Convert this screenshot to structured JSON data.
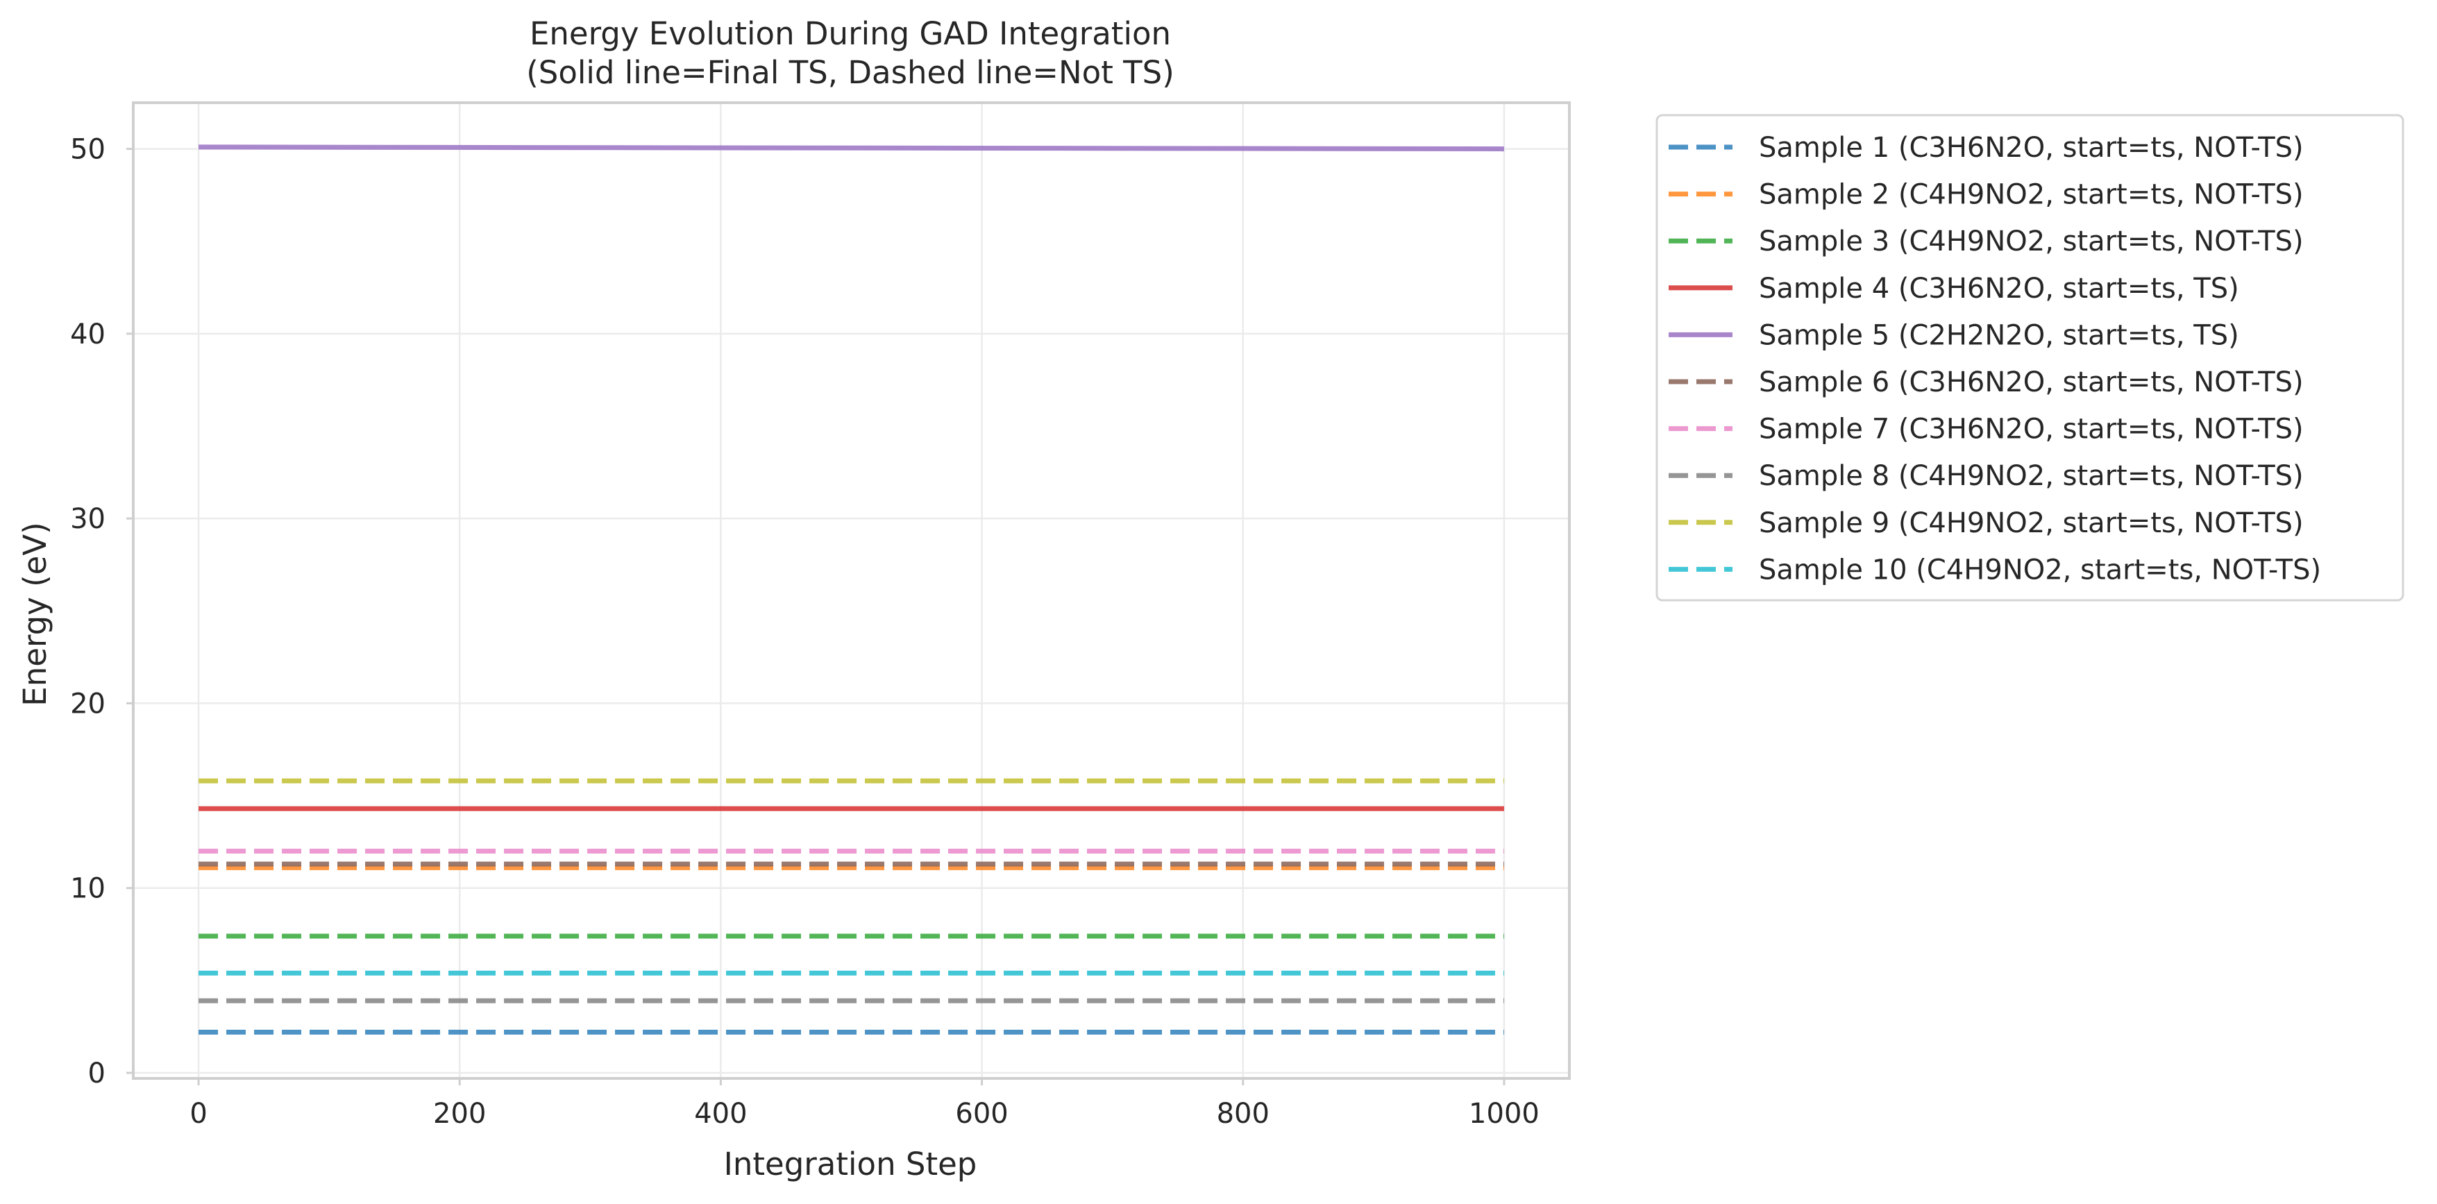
{
  "chart_data": {
    "type": "line",
    "title": "Energy Evolution During GAD Integration",
    "subtitle": "(Solid line=Final TS, Dashed line=Not TS)",
    "xlabel": "Integration Step",
    "ylabel": "Energy (eV)",
    "xlim": [
      -50,
      1050
    ],
    "ylim": [
      -0.3,
      52.5
    ],
    "xticks": [
      0,
      200,
      400,
      600,
      800,
      1000
    ],
    "yticks": [
      0,
      10,
      20,
      30,
      40,
      50
    ],
    "grid": true,
    "legend_position": "outside-right-top",
    "x": [
      0,
      1000
    ],
    "series": [
      {
        "name": "Sample 1 (C3H6N2O, start=ts, NOT-TS)",
        "values": [
          2.2,
          2.2
        ],
        "style": "dashed",
        "color": "#3a87bf"
      },
      {
        "name": "Sample 2 (C4H9NO2, start=ts, NOT-TS)",
        "values": [
          11.1,
          11.1
        ],
        "style": "dashed",
        "color": "#ff8c2b"
      },
      {
        "name": "Sample 3 (C4H9NO2, start=ts, NOT-TS)",
        "values": [
          7.4,
          7.4
        ],
        "style": "dashed",
        "color": "#3fae45"
      },
      {
        "name": "Sample 4 (C3H6N2O, start=ts, TS)",
        "values": [
          14.3,
          14.3
        ],
        "style": "solid",
        "color": "#d93a3a"
      },
      {
        "name": "Sample 5 (C2H2N2O, start=ts, TS)",
        "values": [
          50.1,
          50.0
        ],
        "style": "solid",
        "color": "#a07ac6"
      },
      {
        "name": "Sample 6 (C3H6N2O, start=ts, NOT-TS)",
        "values": [
          11.3,
          11.3
        ],
        "style": "dashed",
        "color": "#8f6a5e"
      },
      {
        "name": "Sample 7 (C3H6N2O, start=ts, NOT-TS)",
        "values": [
          12.0,
          12.0
        ],
        "style": "dashed",
        "color": "#ea8fcc"
      },
      {
        "name": "Sample 8 (C4H9NO2, start=ts, NOT-TS)",
        "values": [
          3.9,
          3.9
        ],
        "style": "dashed",
        "color": "#8a8a8a"
      },
      {
        "name": "Sample 9 (C4H9NO2, start=ts, NOT-TS)",
        "values": [
          15.8,
          15.8
        ],
        "style": "dashed",
        "color": "#c4c23a"
      },
      {
        "name": "Sample 10 (C4H9NO2, start=ts, NOT-TS)",
        "values": [
          5.4,
          5.4
        ],
        "style": "dashed",
        "color": "#2fc1d3"
      }
    ]
  }
}
